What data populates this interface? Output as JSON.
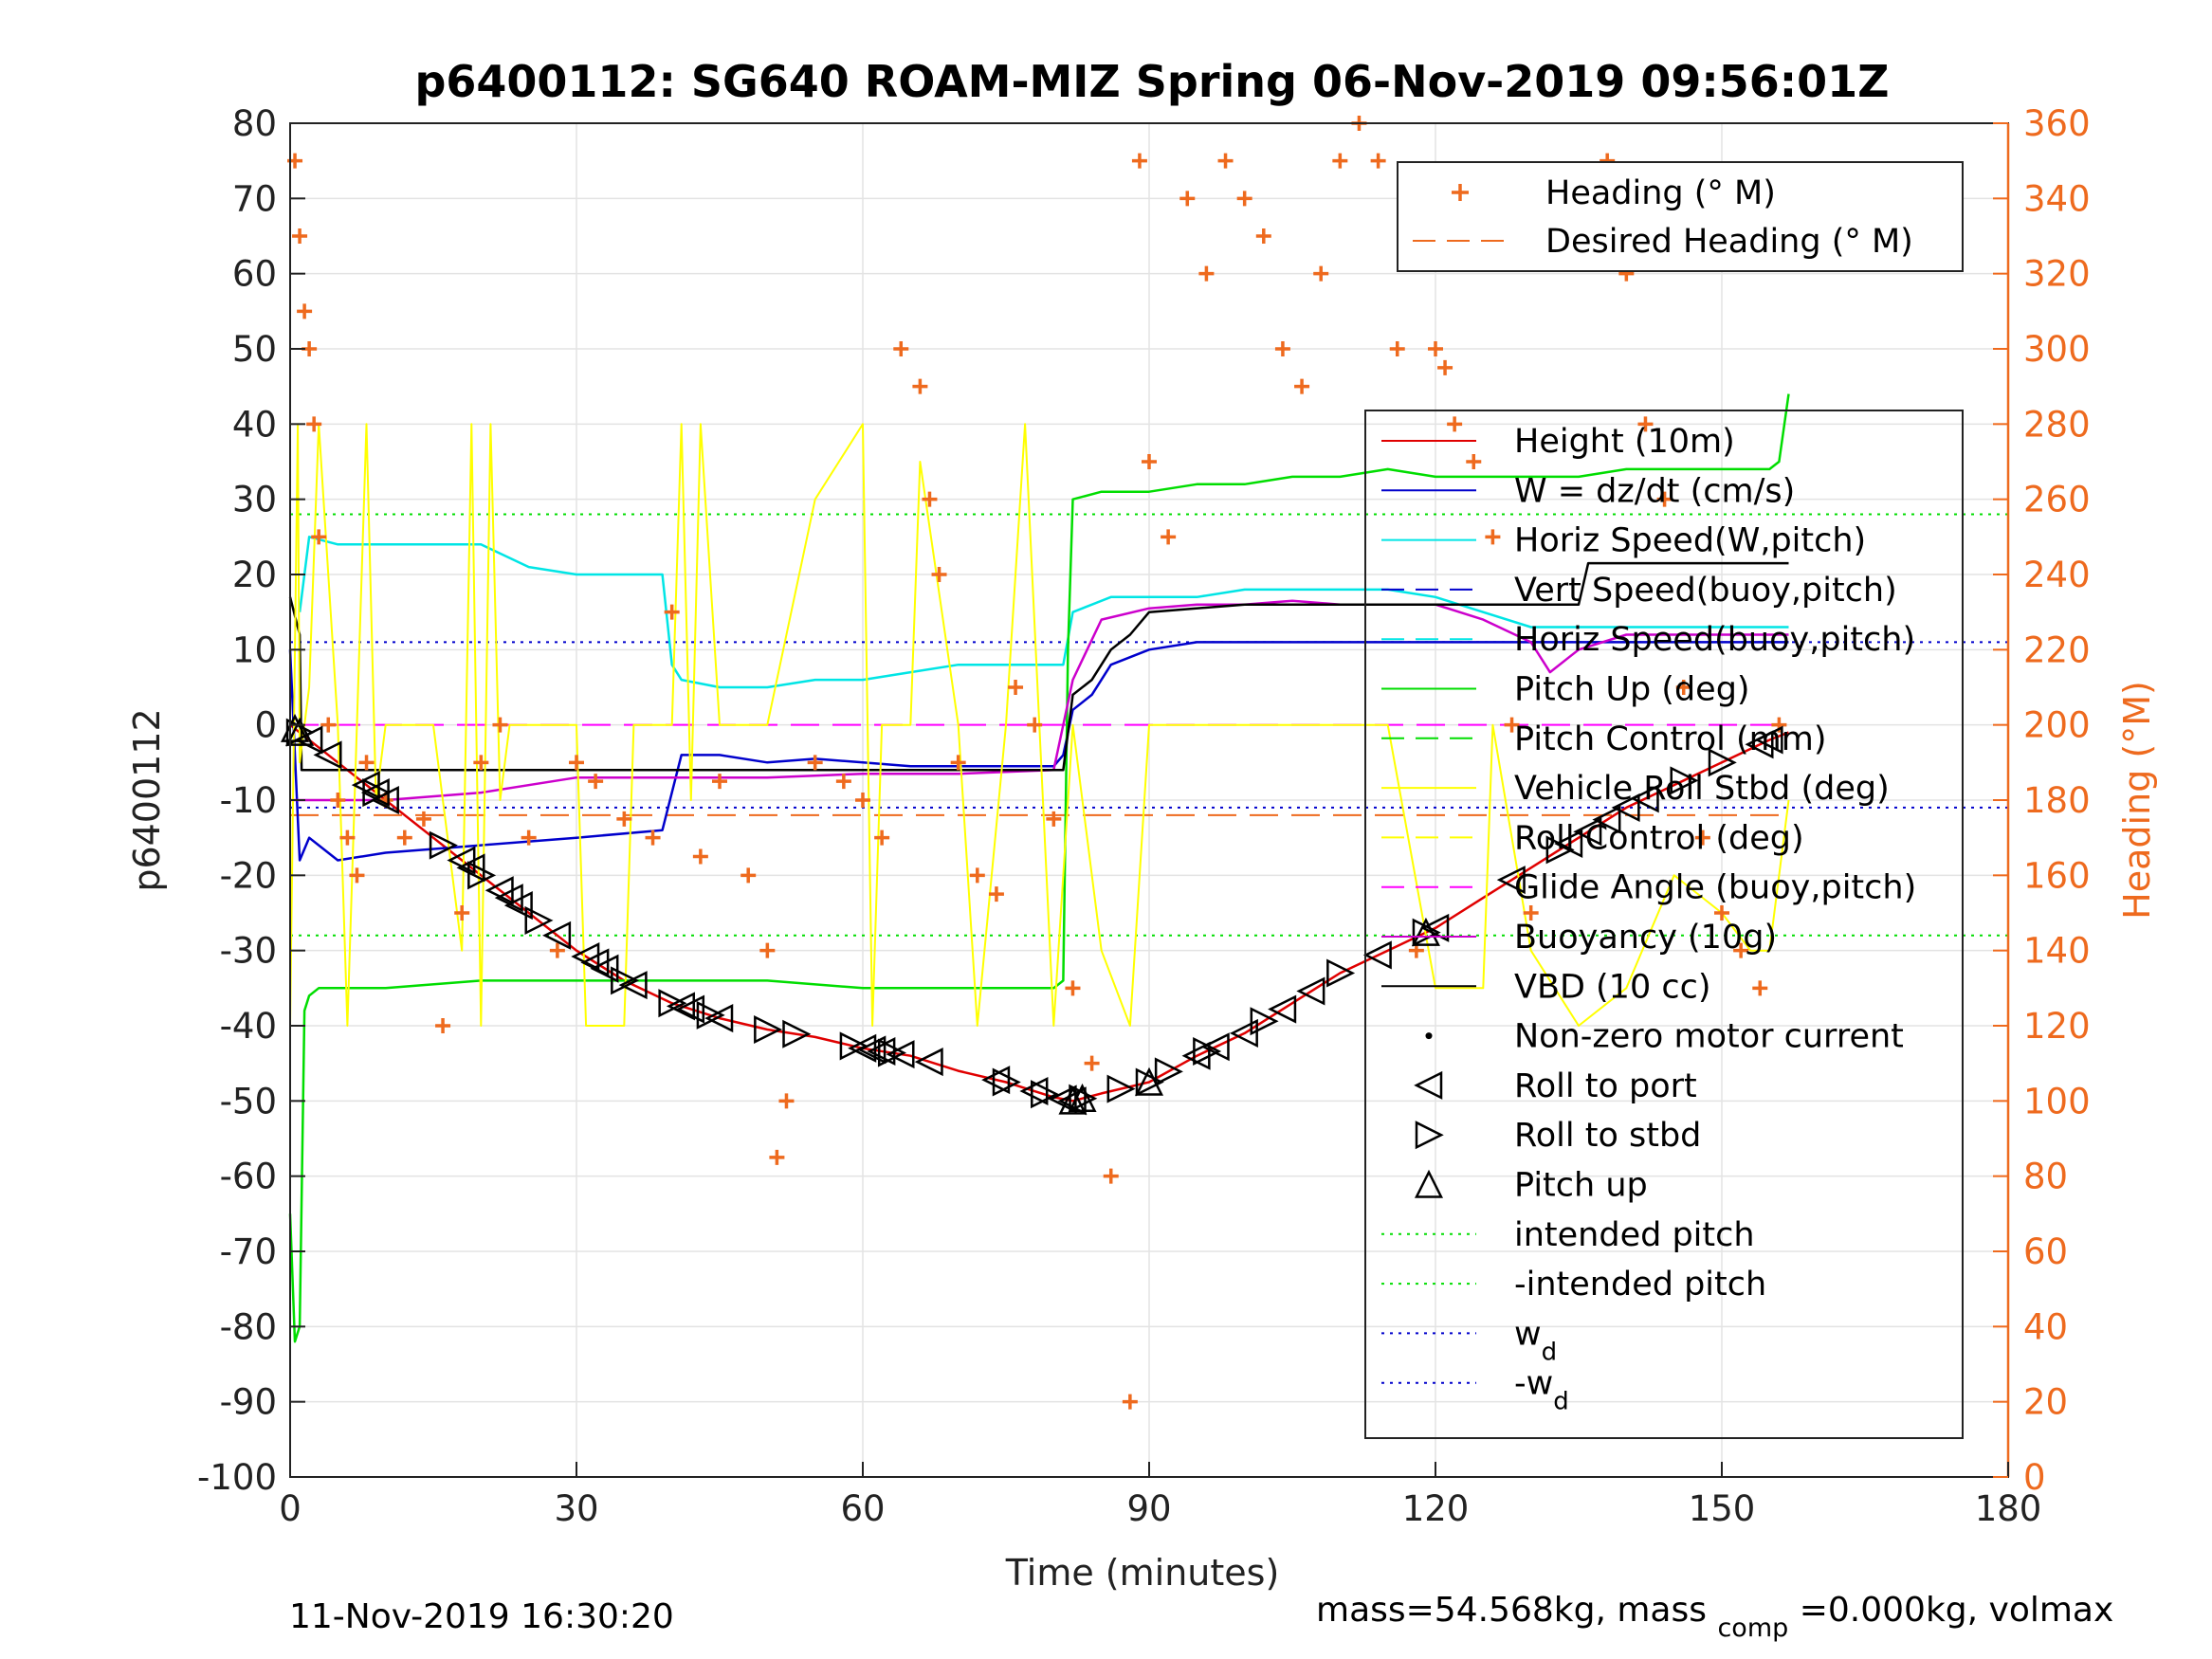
{
  "chart_data": {
    "type": "line",
    "title": "p6400112: SG640 ROAM-MIZ Spring 06-Nov-2019 09:56:01Z",
    "xlabel": "Time (minutes)",
    "ylabel": "p6400112",
    "y2label": "Heading (°M)",
    "xlim": [
      0,
      180
    ],
    "ylim": [
      -100,
      80
    ],
    "y2lim": [
      0,
      360
    ],
    "x_ticks": [
      "0",
      "30",
      "60",
      "90",
      "120",
      "150",
      "180"
    ],
    "y_ticks": [
      "80",
      "70",
      "60",
      "50",
      "40",
      "30",
      "20",
      "10",
      "0",
      "-10",
      "-20",
      "-30",
      "-40",
      "-50",
      "-60",
      "-70",
      "-80",
      "-90",
      "-100"
    ],
    "y2_ticks": [
      "360",
      "340",
      "320",
      "300",
      "280",
      "260",
      "240",
      "220",
      "200",
      "180",
      "160",
      "140",
      "120",
      "100",
      "80",
      "60",
      "40",
      "20",
      "0"
    ],
    "grid": true,
    "footer_left": "11-Nov-2019 16:30:20",
    "footer_right": "mass=54.568kg, mass",
    "footer_right_sub": "comp",
    "footer_right_tail": "=0.000kg, volmax",
    "legend_top": [
      {
        "label": "Heading (° M)",
        "color": "#ee6a1e",
        "style": "plus"
      },
      {
        "label": "Desired Heading (° M)",
        "color": "#ee6a1e",
        "style": "dash"
      }
    ],
    "legend_main": [
      {
        "label": "Height (10m)",
        "color": "#e00000",
        "style": "line"
      },
      {
        "label": "W = dz/dt (cm/s)",
        "color": "#0000cc",
        "style": "line"
      },
      {
        "label": "Horiz Speed(W,pitch)",
        "color": "#00e5e5",
        "style": "line"
      },
      {
        "label": "Vert Speed(buoy,pitch)",
        "color": "#0000cc",
        "style": "dash"
      },
      {
        "label": "Horiz Speed(buoy,pitch)",
        "color": "#00e5e5",
        "style": "dash"
      },
      {
        "label": "Pitch Up (deg)",
        "color": "#00dd00",
        "style": "line"
      },
      {
        "label": "Pitch Control (mm)",
        "color": "#00dd00",
        "style": "dash"
      },
      {
        "label": "Vehicle Roll Stbd (deg)",
        "color": "#ffff00",
        "style": "line"
      },
      {
        "label": "Roll Control (deg)",
        "color": "#ffff00",
        "style": "dash"
      },
      {
        "label": "Glide Angle (buoy,pitch)",
        "color": "#ff00ff",
        "style": "dash"
      },
      {
        "label": "Buoyancy (10g)",
        "color": "#cc00cc",
        "style": "line"
      },
      {
        "label": "VBD (10 cc)",
        "color": "#000000",
        "style": "line"
      },
      {
        "label": "Non-zero motor current",
        "color": "#000000",
        "style": "dot"
      },
      {
        "label": "Roll to port",
        "color": "#000000",
        "style": "tri-left"
      },
      {
        "label": "Roll to stbd",
        "color": "#000000",
        "style": "tri-right"
      },
      {
        "label": "Pitch up",
        "color": "#000000",
        "style": "tri-up"
      },
      {
        "label": "intended pitch",
        "color": "#00dd00",
        "style": "dot-line"
      },
      {
        "label": "-intended pitch",
        "color": "#00dd00",
        "style": "dot-line"
      },
      {
        "label": "w",
        "sub": "d",
        "color": "#0000cc",
        "style": "dot-line"
      },
      {
        "label": "-w",
        "sub": "d",
        "color": "#0000cc",
        "style": "dot-line"
      }
    ],
    "reference_lines": {
      "intended_pitch": 28,
      "neg_intended_pitch": -28,
      "w_d": 11,
      "neg_w_d": -11,
      "desired_heading": 176
    },
    "series": [
      {
        "name": "Height (10m)",
        "color": "#e00000",
        "x": [
          0,
          5,
          10,
          15,
          20,
          25,
          30,
          35,
          40,
          45,
          50,
          55,
          60,
          65,
          70,
          75,
          80,
          82,
          85,
          90,
          95,
          100,
          105,
          110,
          115,
          120,
          125,
          130,
          135,
          140,
          145,
          150,
          155,
          157
        ],
        "y": [
          0,
          -5,
          -10,
          -15,
          -20,
          -25,
          -30,
          -34,
          -37,
          -39,
          -40.5,
          -41.5,
          -43,
          -44,
          -46,
          -47.5,
          -49.5,
          -50,
          -49,
          -47.5,
          -44,
          -41,
          -37,
          -33,
          -30,
          -27,
          -23,
          -19,
          -15,
          -11,
          -8,
          -5,
          -2,
          -1
        ]
      },
      {
        "name": "W = dz/dt (cm/s)",
        "color": "#0000cc",
        "x": [
          0,
          1,
          2,
          5,
          10,
          20,
          30,
          39,
          41,
          45,
          50,
          55,
          60,
          65,
          70,
          75,
          80,
          81,
          82,
          84,
          86,
          90,
          95,
          100,
          105,
          110,
          115,
          120,
          125,
          130,
          135,
          140,
          145,
          150,
          155,
          157
        ],
        "y": [
          10,
          -18,
          -15,
          -18,
          -17,
          -16,
          -15,
          -14,
          -4,
          -4,
          -5,
          -4.5,
          -5,
          -5.5,
          -5.5,
          -5.5,
          -5.5,
          -4,
          2,
          4,
          8,
          10,
          11,
          11,
          11,
          11,
          11,
          11,
          11,
          11,
          11,
          11,
          11,
          11,
          11,
          11
        ]
      },
      {
        "name": "Horiz Speed(W,pitch)",
        "color": "#00e5e5",
        "x": [
          1,
          2,
          5,
          10,
          15,
          20,
          25,
          30,
          35,
          39,
          40,
          41,
          45,
          50,
          55,
          60,
          65,
          70,
          75,
          80,
          81,
          82,
          86,
          90,
          95,
          100,
          105,
          110,
          115,
          120,
          125,
          130,
          135,
          140,
          145,
          150,
          155,
          157
        ],
        "y": [
          15,
          25,
          24,
          24,
          24,
          24,
          21,
          20,
          20,
          20,
          8,
          6,
          5,
          5,
          6,
          6,
          7,
          8,
          8,
          8,
          8,
          15,
          17,
          17,
          17,
          18,
          18,
          18,
          18,
          17,
          15,
          13,
          13,
          13,
          13,
          13,
          13,
          13
        ]
      },
      {
        "name": "Pitch Up (deg)",
        "color": "#00dd00",
        "x": [
          0,
          0.5,
          1,
          1.5,
          2,
          3,
          5,
          10,
          20,
          30,
          40,
          50,
          60,
          70,
          80,
          81,
          81.5,
          82,
          85,
          90,
          95,
          100,
          105,
          110,
          115,
          120,
          125,
          130,
          135,
          140,
          145,
          150,
          155,
          156,
          157
        ],
        "y": [
          -65,
          -82,
          -80,
          -38,
          -36,
          -35,
          -35,
          -35,
          -34,
          -34,
          -34,
          -34,
          -35,
          -35,
          -35,
          -34,
          10,
          30,
          31,
          31,
          32,
          32,
          33,
          33,
          34,
          33,
          33,
          33,
          33,
          34,
          34,
          34,
          34,
          35,
          44
        ]
      },
      {
        "name": "Buoyancy (10g)",
        "color": "#cc00cc",
        "x": [
          0,
          2,
          10,
          20,
          30,
          40,
          50,
          60,
          70,
          80,
          82,
          85,
          90,
          95,
          100,
          105,
          110,
          115,
          120,
          125,
          130,
          132,
          135,
          140,
          145,
          150,
          155,
          157
        ],
        "y": [
          -10,
          -10,
          -10,
          -9,
          -7,
          -7,
          -7,
          -6.5,
          -6.5,
          -6,
          6,
          14,
          15.5,
          16,
          16,
          16.5,
          16,
          16,
          16,
          14,
          11,
          7,
          10,
          12,
          12,
          12,
          12,
          12
        ]
      },
      {
        "name": "VBD (10 cc)",
        "color": "#000000",
        "x": [
          0,
          1,
          1.2,
          20,
          40,
          60,
          80,
          81,
          82,
          84,
          86,
          88,
          90,
          100,
          120,
          135,
          136,
          157
        ],
        "y": [
          17,
          12,
          -6,
          -6,
          -6,
          -6,
          -6,
          -6,
          4,
          6,
          10,
          12,
          15,
          16,
          16,
          16,
          21.5,
          21.5
        ]
      },
      {
        "name": "Vehicle Roll Stbd (deg)",
        "color": "#ffff00",
        "x": [
          0,
          0.8,
          1,
          2,
          3,
          5,
          6,
          8,
          9,
          10,
          15,
          18,
          19,
          20,
          21,
          22,
          23,
          25,
          30,
          31,
          35,
          36,
          40,
          41,
          42,
          43,
          45,
          50,
          55,
          60,
          61,
          62,
          65,
          66,
          70,
          72,
          75,
          77,
          80,
          82,
          85,
          88,
          90,
          95,
          100,
          105,
          110,
          115,
          120,
          125,
          126,
          130,
          135,
          140,
          145,
          150,
          153,
          155,
          157
        ],
        "y": [
          -40,
          40,
          -5,
          5,
          40,
          0,
          -40,
          40,
          -10,
          0,
          0,
          -30,
          40,
          -40,
          40,
          -10,
          0,
          0,
          0,
          -40,
          -40,
          0,
          0,
          40,
          -10,
          40,
          0,
          0,
          30,
          40,
          -40,
          0,
          0,
          35,
          0,
          -40,
          0,
          40,
          -40,
          0,
          -30,
          -40,
          0,
          0,
          0,
          0,
          0,
          0,
          -35,
          -35,
          0,
          -30,
          -40,
          -35,
          -20,
          -25,
          -30,
          -30,
          -10
        ]
      },
      {
        "name": "Heading (° M)",
        "color": "#ee6a1e",
        "x": [
          0.5,
          1,
          1.5,
          2,
          2.5,
          3,
          4,
          5,
          6,
          7,
          8,
          10,
          12,
          14,
          16,
          18,
          20,
          22,
          25,
          28,
          30,
          32,
          35,
          38,
          40,
          43,
          45,
          48,
          50,
          51,
          52,
          55,
          58,
          60,
          62,
          64,
          66,
          67,
          68,
          70,
          72,
          74,
          76,
          78,
          80,
          82,
          84,
          86,
          88,
          89,
          90,
          92,
          94,
          96,
          98,
          100,
          102,
          104,
          106,
          108,
          110,
          112,
          114,
          116,
          118,
          120,
          121,
          122,
          124,
          126,
          128,
          130,
          132,
          134,
          136,
          138,
          140,
          142,
          144,
          146,
          148,
          150,
          152,
          154,
          156
        ],
        "y": [
          350,
          330,
          310,
          300,
          280,
          250,
          200,
          180,
          170,
          160,
          190,
          180,
          170,
          175,
          120,
          150,
          190,
          200,
          170,
          140,
          190,
          185,
          175,
          170,
          230,
          165,
          185,
          160,
          140,
          85,
          100,
          190,
          185,
          180,
          170,
          300,
          290,
          260,
          240,
          190,
          160,
          155,
          210,
          200,
          175,
          130,
          110,
          80,
          20,
          350,
          270,
          250,
          340,
          320,
          350,
          340,
          330,
          300,
          290,
          320,
          350,
          360,
          350,
          300,
          140,
          300,
          295,
          280,
          270,
          250,
          200,
          150,
          345,
          330,
          340,
          350,
          320,
          280,
          260,
          210,
          170,
          150,
          140,
          130,
          200
        ]
      }
    ],
    "markers": {
      "roll_to_port_x": [
        2,
        4,
        8,
        9,
        10,
        18,
        19,
        22,
        23,
        24,
        28,
        31,
        32,
        33,
        36,
        41,
        42,
        45,
        60,
        61,
        62,
        64,
        67,
        74,
        78,
        81,
        82,
        95,
        97,
        100,
        104,
        107,
        114,
        120,
        128,
        134,
        136,
        138,
        140,
        142,
        154,
        155
      ],
      "roll_to_stbd_x": [
        1,
        9,
        16,
        20,
        26,
        35,
        40,
        44,
        50,
        53,
        59,
        63,
        75,
        79,
        83,
        87,
        90,
        92,
        96,
        102,
        110,
        119,
        133,
        146,
        150
      ],
      "pitch_up_x": [
        0.5,
        1,
        82,
        83,
        90,
        119
      ]
    }
  }
}
